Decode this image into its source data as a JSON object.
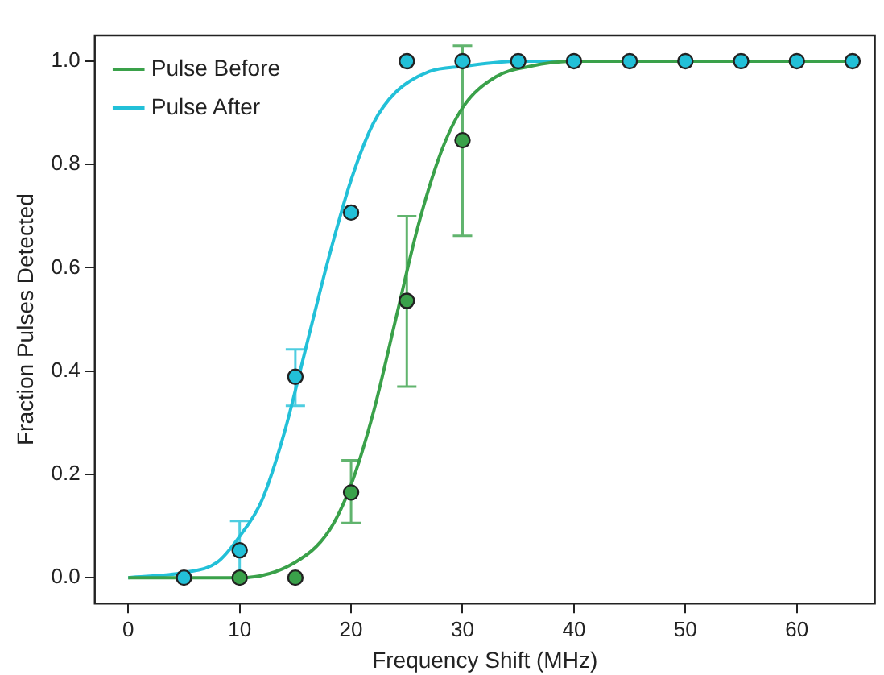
{
  "chart_data": {
    "type": "scatter",
    "xlabel": "Frequency Shift (MHz)",
    "ylabel": "Fraction Pulses Detected",
    "xlim": [
      -3,
      67
    ],
    "xticks": [
      0,
      10,
      20,
      30,
      40,
      50,
      60
    ],
    "ylim": [
      -0.05,
      1.05
    ],
    "yticks": [
      {
        "value": 0,
        "label": "0.0"
      },
      {
        "value": 0.2,
        "label": "0.2"
      },
      {
        "value": 0.4,
        "label": "0.4"
      },
      {
        "value": 0.6,
        "label": "0.6"
      },
      {
        "value": 0.8,
        "label": "0.8"
      },
      {
        "value": 1,
        "label": "1.0"
      }
    ],
    "grid": false,
    "legend": "top left",
    "series": [
      {
        "name": "Pulse Before",
        "type": "line",
        "marker": "none",
        "color": "#3aa14a",
        "x": [
          0,
          10,
          15,
          18,
          20,
          22,
          24,
          26,
          28,
          30,
          33,
          36,
          40,
          65
        ],
        "values": [
          0,
          0,
          0.03,
          0.09,
          0.18,
          0.32,
          0.5,
          0.68,
          0.82,
          0.91,
          0.97,
          0.99,
          1,
          1
        ]
      },
      {
        "name": "Pulse After",
        "type": "line",
        "marker": "none",
        "color": "#22c0d8",
        "x": [
          0,
          5,
          8,
          10,
          12,
          14,
          16,
          18,
          20,
          22,
          24,
          27,
          30,
          35,
          65
        ],
        "values": [
          0,
          0.01,
          0.03,
          0.08,
          0.15,
          0.28,
          0.45,
          0.62,
          0.77,
          0.88,
          0.94,
          0.98,
          0.99,
          1,
          1
        ]
      },
      {
        "marker": "circle",
        "color": "#3aa14a",
        "x": [
          10,
          15,
          20,
          25,
          30
        ],
        "values": [
          0,
          0,
          0.165,
          0.536,
          0.847
        ],
        "errors": [
          null,
          null,
          [
            0.106,
            0.227
          ],
          [
            0.37,
            0.7
          ],
          [
            0.662,
            1.03
          ]
        ],
        "xerrors": [
          null,
          0.7,
          null,
          null,
          null
        ]
      },
      {
        "marker": "circle",
        "color": "#22c0d8",
        "x": [
          5,
          10,
          15,
          20,
          25,
          30,
          35,
          40,
          45,
          50,
          55,
          60,
          65
        ],
        "values": [
          0,
          0.053,
          0.389,
          0.707,
          1,
          1,
          1,
          1,
          1,
          1,
          1,
          1,
          1
        ],
        "errors": [
          null,
          [
            0,
            0.11
          ],
          [
            0.333,
            0.442
          ],
          null,
          null,
          null,
          null,
          null,
          null,
          null,
          null,
          null,
          null
        ],
        "xerrors": [
          null,
          null,
          null,
          0.7,
          0.7,
          null,
          null,
          null,
          null,
          null,
          null,
          null,
          null
        ]
      }
    ]
  }
}
